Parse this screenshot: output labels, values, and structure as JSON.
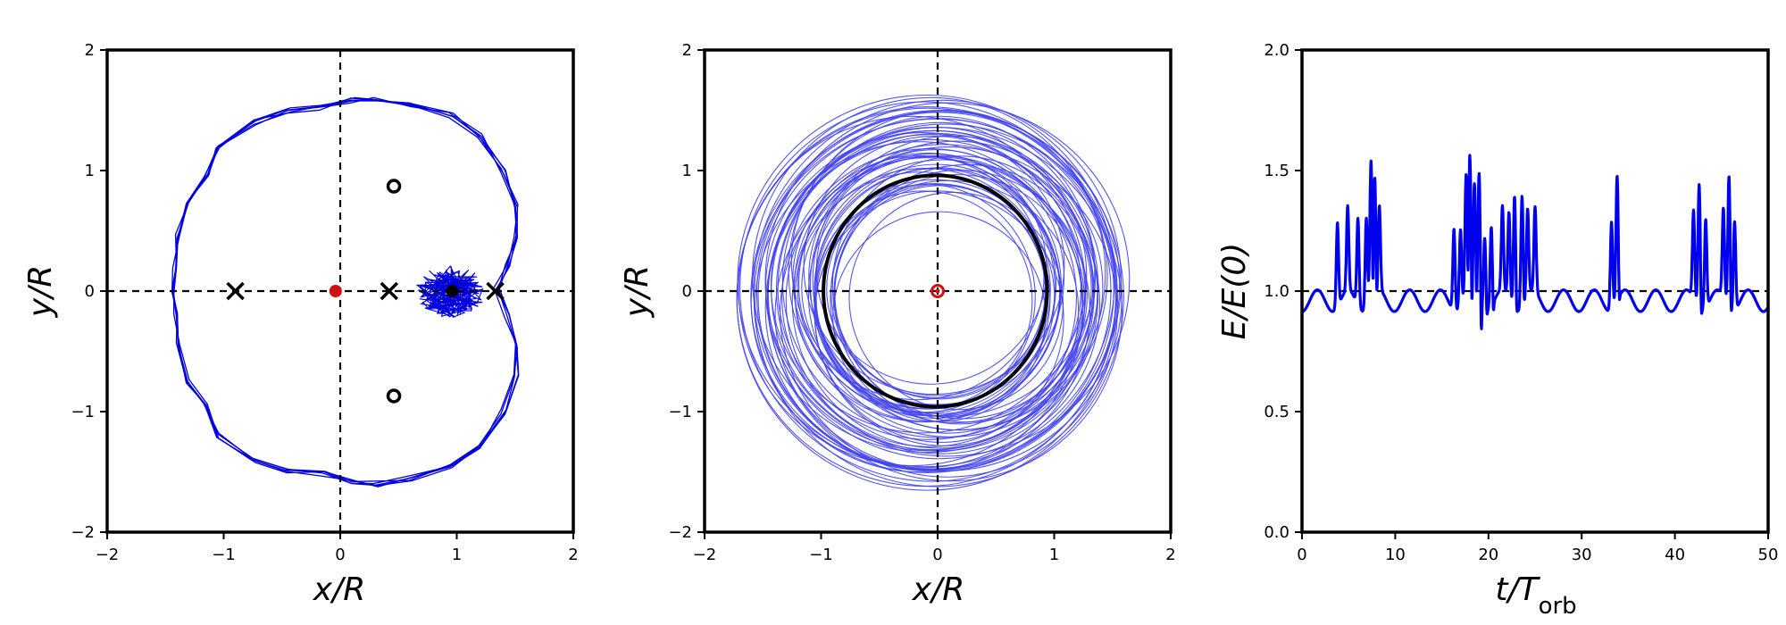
{
  "figure": {
    "panels": [
      {
        "xlabel": "x/R",
        "ylabel": "y/R"
      },
      {
        "xlabel": "x/R",
        "ylabel": "y/R"
      },
      {
        "xlabel": "t/T",
        "xlabel_sub": "orb",
        "ylabel": "E/E(0)"
      }
    ]
  },
  "chart_data": [
    {
      "type": "line",
      "title": "",
      "xlabel": "x/R",
      "ylabel": "y/R",
      "xlim": [
        -2,
        2
      ],
      "ylim": [
        -2,
        2
      ],
      "xticks": [
        -2,
        -1,
        0,
        1,
        2
      ],
      "yticks": [
        -2,
        -1,
        0,
        1,
        2
      ],
      "xtick_labels": [
        "−2",
        "−1",
        "0",
        "1",
        "2"
      ],
      "ytick_labels": [
        "−2",
        "−1",
        "0",
        "1",
        "2"
      ],
      "reference_lines": [
        {
          "axis": "x",
          "value": 0,
          "style": "dashed"
        },
        {
          "axis": "y",
          "value": 0,
          "style": "dashed"
        }
      ],
      "markers": [
        {
          "kind": "cross",
          "x": -0.9,
          "y": 0
        },
        {
          "kind": "cross",
          "x": 0.42,
          "y": 0
        },
        {
          "kind": "cross",
          "x": 1.33,
          "y": 0
        },
        {
          "kind": "open-circle",
          "x": 0.46,
          "y": 0.87
        },
        {
          "kind": "open-circle",
          "x": 0.46,
          "y": -0.87
        },
        {
          "kind": "filled-circle",
          "color": "#000000",
          "x": 0.96,
          "y": 0
        },
        {
          "kind": "filled-circle",
          "color": "#cc1111",
          "x": -0.04,
          "y": 0
        }
      ],
      "trajectory": {
        "color": "#0000dd",
        "loops": 5,
        "points": [
          [
            1.34,
            0.0
          ],
          [
            1.43,
            0.21
          ],
          [
            1.5,
            0.45
          ],
          [
            1.51,
            0.7
          ],
          [
            1.4,
            1.0
          ],
          [
            1.2,
            1.28
          ],
          [
            0.95,
            1.46
          ],
          [
            0.6,
            1.55
          ],
          [
            0.3,
            1.6
          ],
          [
            0.1,
            1.58
          ],
          [
            -0.15,
            1.52
          ],
          [
            -0.45,
            1.5
          ],
          [
            -0.75,
            1.4
          ],
          [
            -1.05,
            1.2
          ],
          [
            -1.15,
            0.95
          ],
          [
            -1.3,
            0.75
          ],
          [
            -1.4,
            0.45
          ],
          [
            -1.42,
            0.2
          ],
          [
            -1.44,
            0.0
          ],
          [
            -1.42,
            -0.2
          ],
          [
            -1.4,
            -0.45
          ],
          [
            -1.3,
            -0.75
          ],
          [
            -1.15,
            -0.95
          ],
          [
            -1.05,
            -1.2
          ],
          [
            -0.75,
            -1.4
          ],
          [
            -0.45,
            -1.5
          ],
          [
            -0.15,
            -1.52
          ],
          [
            0.1,
            -1.58
          ],
          [
            0.3,
            -1.6
          ],
          [
            0.6,
            -1.55
          ],
          [
            0.95,
            -1.46
          ],
          [
            1.2,
            -1.28
          ],
          [
            1.4,
            -1.0
          ],
          [
            1.51,
            -0.7
          ],
          [
            1.5,
            -0.45
          ],
          [
            1.43,
            -0.21
          ],
          [
            1.34,
            0.0
          ]
        ]
      },
      "cluster": {
        "center": [
          0.95,
          0
        ],
        "radius_x": 0.3,
        "radius_y": 0.22,
        "color": "#0000dd"
      }
    },
    {
      "type": "line",
      "title": "",
      "xlabel": "x/R",
      "ylabel": "y/R",
      "xlim": [
        -2,
        2
      ],
      "ylim": [
        -2,
        2
      ],
      "xticks": [
        -2,
        -1,
        0,
        1,
        2
      ],
      "yticks": [
        -2,
        -1,
        0,
        1,
        2
      ],
      "xtick_labels": [
        "−2",
        "−1",
        "0",
        "1",
        "2"
      ],
      "ytick_labels": [
        "−2",
        "−1",
        "0",
        "1",
        "2"
      ],
      "reference_lines": [
        {
          "axis": "x",
          "value": 0,
          "style": "dashed"
        },
        {
          "axis": "y",
          "value": 0,
          "style": "dashed"
        }
      ],
      "circle": {
        "center": [
          -0.02,
          0
        ],
        "radius": 0.96,
        "color": "#000000"
      },
      "center_marker": {
        "x": 0,
        "y": 0,
        "color": "#cc1111"
      },
      "orbits": {
        "color": "#4444ee",
        "count": 60,
        "radius_range": [
          0.9,
          1.64
        ],
        "offset_range": [
          0,
          0.22
        ]
      }
    },
    {
      "type": "line",
      "title": "",
      "xlabel": "t/T_orb",
      "ylabel": "E/E(0)",
      "xlim": [
        0,
        50
      ],
      "ylim": [
        0.0,
        2.0
      ],
      "xticks": [
        0,
        10,
        20,
        30,
        40,
        50
      ],
      "yticks": [
        0.0,
        0.5,
        1.0,
        1.5,
        2.0
      ],
      "xtick_labels": [
        "0",
        "10",
        "20",
        "30",
        "40",
        "50"
      ],
      "ytick_labels": [
        "0.0",
        "0.5",
        "1.0",
        "1.5",
        "2.0"
      ],
      "reference_lines": [
        {
          "axis": "y",
          "value": 1.0,
          "style": "dashed"
        }
      ],
      "series": [
        {
          "color": "#0000ee",
          "baseline": {
            "mean": 0.96,
            "amplitude": 0.045,
            "period": 3.3
          },
          "spikes": [
            {
              "t": 3.8,
              "peak": 1.35,
              "dip": 1.0
            },
            {
              "t": 4.9,
              "peak": 1.35,
              "dip": 1.0
            },
            {
              "t": 6.0,
              "peak": 1.36,
              "dip": 1.0
            },
            {
              "t": 6.9,
              "peak": 1.38,
              "dip": 1.0
            },
            {
              "t": 7.4,
              "peak": 1.58,
              "dip": 0.81
            },
            {
              "t": 7.8,
              "peak": 1.48,
              "dip": 0.9
            },
            {
              "t": 8.3,
              "peak": 1.35,
              "dip": 1.0
            },
            {
              "t": 16.3,
              "peak": 1.34,
              "dip": 1.0
            },
            {
              "t": 17.0,
              "peak": 1.32,
              "dip": 1.0
            },
            {
              "t": 17.6,
              "peak": 1.5,
              "dip": 0.82
            },
            {
              "t": 18.0,
              "peak": 1.56,
              "dip": 0.83
            },
            {
              "t": 18.5,
              "peak": 1.45,
              "dip": 0.9
            },
            {
              "t": 19.0,
              "peak": 1.53,
              "dip": 0.82
            },
            {
              "t": 19.6,
              "peak": 1.3,
              "dip": 0.95
            },
            {
              "t": 20.3,
              "peak": 1.33,
              "dip": 0.92
            },
            {
              "t": 21.5,
              "peak": 1.35,
              "dip": 1.0
            },
            {
              "t": 22.2,
              "peak": 1.36,
              "dip": 1.0
            },
            {
              "t": 22.8,
              "peak": 1.47,
              "dip": 0.95
            },
            {
              "t": 23.6,
              "peak": 1.46,
              "dip": 0.95
            },
            {
              "t": 24.2,
              "peak": 1.36,
              "dip": 1.0
            },
            {
              "t": 25.0,
              "peak": 1.35,
              "dip": 1.0
            },
            {
              "t": 33.2,
              "peak": 1.37,
              "dip": 1.0
            },
            {
              "t": 33.8,
              "peak": 1.52,
              "dip": 0.92
            },
            {
              "t": 42.0,
              "peak": 1.37,
              "dip": 1.0
            },
            {
              "t": 42.6,
              "peak": 1.52,
              "dip": 0.93
            },
            {
              "t": 43.3,
              "peak": 1.37,
              "dip": 1.0
            },
            {
              "t": 45.2,
              "peak": 1.37,
              "dip": 1.0
            },
            {
              "t": 45.8,
              "peak": 1.55,
              "dip": 0.93
            },
            {
              "t": 46.4,
              "peak": 1.37,
              "dip": 1.0
            }
          ]
        }
      ]
    }
  ]
}
